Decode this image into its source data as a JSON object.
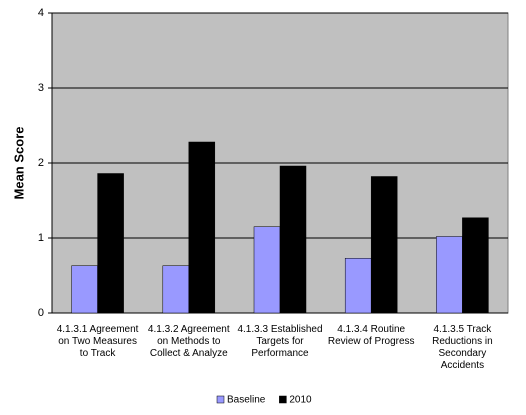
{
  "chart_data": {
    "type": "bar",
    "y_label": "Mean Score",
    "categories": [
      "4.1.3.1 Agreement\non Two Measures\nto Track",
      "4.1.3.2 Agreement\non Methods to\nCollect & Analyze",
      "4.1.3.3 Established\nTargets for\nPerformance",
      "4.1.3.4 Routine\nReview of Progress",
      "4.1.3.5 Track\nReductions in\nSecondary\nAccidents"
    ],
    "series": [
      {
        "name": "Baseline",
        "color": "#9999ff",
        "values": [
          0.63,
          0.63,
          1.15,
          0.73,
          1.02
        ]
      },
      {
        "name": "2010",
        "color": "#000000",
        "values": [
          1.86,
          2.28,
          1.96,
          1.82,
          1.27
        ]
      }
    ],
    "ylim": [
      0,
      4
    ],
    "yticks": [
      0,
      1,
      2,
      3,
      4
    ],
    "grid": true,
    "legend": "bottom"
  }
}
